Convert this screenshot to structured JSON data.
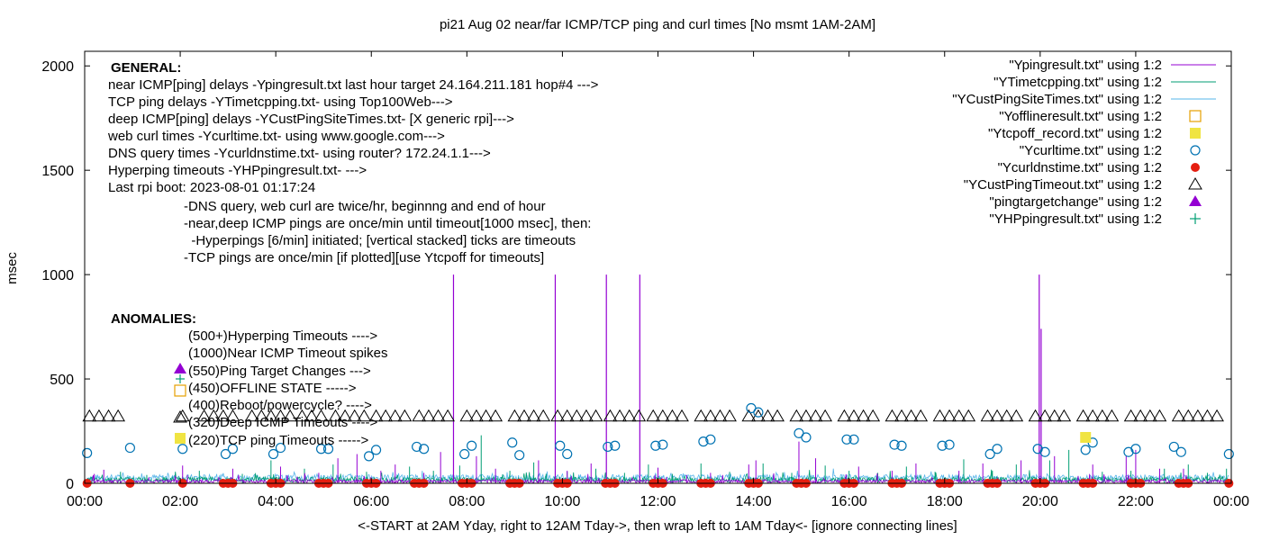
{
  "chart_data": {
    "type": "line",
    "title": "pi21 Aug 02  near/far ICMP/TCP ping and curl times [No msmt 1AM-2AM]",
    "xlabel": "<-START at 2AM Yday, right to 12AM Tday->, then wrap left to 1AM Tday<- [ignore connecting lines]",
    "ylabel": "msec",
    "xlim": [
      0,
      24
    ],
    "ylim": [
      0,
      2070
    ],
    "x_ticks": [
      "00:00",
      "02:00",
      "04:00",
      "06:00",
      "08:00",
      "10:00",
      "12:00",
      "14:00",
      "16:00",
      "18:00",
      "20:00",
      "22:00",
      "00:00"
    ],
    "y_ticks": [
      "0",
      "500",
      "1000",
      "1500",
      "2000"
    ],
    "legend_position": "top-right",
    "legend": [
      {
        "label": "\"Ypingresult.txt\" using 1:2",
        "kind": "line",
        "color": "#9400d3"
      },
      {
        "label": "\"YTimetcpping.txt\" using 1:2",
        "kind": "line",
        "color": "#009e73"
      },
      {
        "label": "\"YCustPingSiteTimes.txt\" using 1:2",
        "kind": "line",
        "color": "#56b4e9"
      },
      {
        "label": "\"Yofflineresult.txt\" using 1:2",
        "kind": "open-square",
        "color": "#e69f00"
      },
      {
        "label": "\"Ytcpoff_record.txt\" using 1:2",
        "kind": "filled-square",
        "color": "#f0e442"
      },
      {
        "label": "\"Ycurltime.txt\" using 1:2",
        "kind": "open-circle",
        "color": "#0072b2"
      },
      {
        "label": "\"Ycurldnstime.txt\" using 1:2",
        "kind": "filled-circle",
        "color": "#e51e10"
      },
      {
        "label": "\"YCustPingTimeout.txt\" using 1:2",
        "kind": "open-triangle",
        "color": "#000000"
      },
      {
        "label": "\"pingtargetchange\" using 1:2",
        "kind": "filled-triangle",
        "color": "#9400d3"
      },
      {
        "label": "\"YHPpingresult.txt\" using 1:2",
        "kind": "plus",
        "color": "#009e73"
      }
    ],
    "general_heading": "GENERAL:",
    "general_lines": [
      "near ICMP[ping] delays -Ypingresult.txt last hour target 24.164.211.181 hop#4 --->",
      "TCP ping delays -YTimetcpping.txt- using Top100Web--->",
      "deep ICMP[ping] delays -YCustPingSiteTimes.txt- [X generic rpi]--->",
      "web curl times -Ycurltime.txt- using www.google.com--->",
      "DNS query times -Ycurldnstime.txt- using router? 172.24.1.1--->",
      "Hyperping timeouts -YHPpingresult.txt- --->",
      "Last rpi boot: 2023-08-01 01:17:24"
    ],
    "general_notes": [
      "-DNS query, web curl are twice/hr, beginnng and end of hour",
      "-near,deep ICMP pings are once/min until timeout[1000 msec], then:",
      "  -Hyperpings [6/min] initiated; [vertical stacked] ticks are timeouts",
      "-TCP pings are once/min [if plotted][use Ytcpoff for timeouts]"
    ],
    "anomalies_heading": "ANOMALIES:",
    "anomalies_lines": [
      "(500+)Hyperping Timeouts ---->",
      "(1000)Near ICMP Timeout spikes",
      "(550)Ping Target Changes --->",
      "(450)OFFLINE STATE ----->",
      "(400)Reboot/powercycle? ---->",
      "(320)Deep ICMP Timeouts ---->",
      "(220)TCP ping Timeouts ----->"
    ],
    "series": {
      "ping_spikes": [
        {
          "x": 7.72,
          "y": 1000
        },
        {
          "x": 9.85,
          "y": 1000
        },
        {
          "x": 10.92,
          "y": 1000
        },
        {
          "x": 11.62,
          "y": 1000
        },
        {
          "x": 19.98,
          "y": 1000
        },
        {
          "x": 20.02,
          "y": 740
        }
      ],
      "ping_small_peaks": [
        {
          "x": 0.2,
          "y": 45
        },
        {
          "x": 0.4,
          "y": 65
        },
        {
          "x": 2.05,
          "y": 85
        },
        {
          "x": 2.15,
          "y": 40
        },
        {
          "x": 3.1,
          "y": 70
        },
        {
          "x": 4.1,
          "y": 80
        },
        {
          "x": 4.9,
          "y": 50
        },
        {
          "x": 5.3,
          "y": 120
        },
        {
          "x": 5.7,
          "y": 140
        },
        {
          "x": 6.2,
          "y": 60
        },
        {
          "x": 6.5,
          "y": 90
        },
        {
          "x": 7.1,
          "y": 50
        },
        {
          "x": 7.45,
          "y": 150
        },
        {
          "x": 8.2,
          "y": 130
        },
        {
          "x": 8.6,
          "y": 70
        },
        {
          "x": 9.5,
          "y": 110
        },
        {
          "x": 10.1,
          "y": 60
        },
        {
          "x": 10.6,
          "y": 95
        },
        {
          "x": 12.0,
          "y": 75
        },
        {
          "x": 12.6,
          "y": 40
        },
        {
          "x": 13.1,
          "y": 50
        },
        {
          "x": 13.9,
          "y": 90
        },
        {
          "x": 14.05,
          "y": 110
        },
        {
          "x": 14.95,
          "y": 200
        },
        {
          "x": 15.3,
          "y": 120
        },
        {
          "x": 16.2,
          "y": 80
        },
        {
          "x": 16.9,
          "y": 60
        },
        {
          "x": 17.4,
          "y": 95
        },
        {
          "x": 18.3,
          "y": 60
        },
        {
          "x": 18.8,
          "y": 95
        },
        {
          "x": 19.6,
          "y": 110
        },
        {
          "x": 20.3,
          "y": 130
        },
        {
          "x": 21.1,
          "y": 90
        },
        {
          "x": 21.8,
          "y": 130
        },
        {
          "x": 22.0,
          "y": 160
        },
        {
          "x": 22.5,
          "y": 70
        },
        {
          "x": 23.0,
          "y": 70
        }
      ],
      "tcp_peaks": [
        {
          "x": 0.15,
          "y": 30
        },
        {
          "x": 0.75,
          "y": 55
        },
        {
          "x": 1.3,
          "y": 40
        },
        {
          "x": 2.4,
          "y": 60
        },
        {
          "x": 3.3,
          "y": 45
        },
        {
          "x": 3.9,
          "y": 110
        },
        {
          "x": 4.6,
          "y": 70
        },
        {
          "x": 5.2,
          "y": 90
        },
        {
          "x": 5.9,
          "y": 55
        },
        {
          "x": 6.8,
          "y": 80
        },
        {
          "x": 7.3,
          "y": 60
        },
        {
          "x": 7.85,
          "y": 85
        },
        {
          "x": 8.3,
          "y": 230
        },
        {
          "x": 8.9,
          "y": 60
        },
        {
          "x": 9.4,
          "y": 100
        },
        {
          "x": 10.1,
          "y": 55
        },
        {
          "x": 10.7,
          "y": 70
        },
        {
          "x": 11.3,
          "y": 50
        },
        {
          "x": 11.8,
          "y": 90
        },
        {
          "x": 12.3,
          "y": 45
        },
        {
          "x": 12.9,
          "y": 95
        },
        {
          "x": 13.5,
          "y": 55
        },
        {
          "x": 14.2,
          "y": 95
        },
        {
          "x": 14.8,
          "y": 50
        },
        {
          "x": 15.5,
          "y": 85
        },
        {
          "x": 16.0,
          "y": 60
        },
        {
          "x": 16.6,
          "y": 50
        },
        {
          "x": 17.2,
          "y": 80
        },
        {
          "x": 17.8,
          "y": 55
        },
        {
          "x": 18.4,
          "y": 115
        },
        {
          "x": 19.0,
          "y": 60
        },
        {
          "x": 19.5,
          "y": 90
        },
        {
          "x": 20.2,
          "y": 110
        },
        {
          "x": 20.6,
          "y": 160
        },
        {
          "x": 21.3,
          "y": 55
        },
        {
          "x": 21.9,
          "y": 60
        },
        {
          "x": 22.6,
          "y": 70
        },
        {
          "x": 23.1,
          "y": 90
        },
        {
          "x": 23.5,
          "y": 50
        },
        {
          "x": 23.9,
          "y": 70
        }
      ],
      "curl_time": [
        {
          "x": 0.05,
          "y": 145
        },
        {
          "x": 0.95,
          "y": 170
        },
        {
          "x": 2.05,
          "y": 165
        },
        {
          "x": 2.95,
          "y": 140
        },
        {
          "x": 3.1,
          "y": 165
        },
        {
          "x": 3.95,
          "y": 140
        },
        {
          "x": 4.1,
          "y": 170
        },
        {
          "x": 4.95,
          "y": 165
        },
        {
          "x": 5.1,
          "y": 165
        },
        {
          "x": 5.95,
          "y": 130
        },
        {
          "x": 6.1,
          "y": 160
        },
        {
          "x": 6.95,
          "y": 175
        },
        {
          "x": 7.1,
          "y": 165
        },
        {
          "x": 7.95,
          "y": 140
        },
        {
          "x": 8.1,
          "y": 180
        },
        {
          "x": 8.95,
          "y": 195
        },
        {
          "x": 9.1,
          "y": 135
        },
        {
          "x": 9.95,
          "y": 180
        },
        {
          "x": 10.1,
          "y": 140
        },
        {
          "x": 10.95,
          "y": 175
        },
        {
          "x": 11.1,
          "y": 180
        },
        {
          "x": 11.95,
          "y": 180
        },
        {
          "x": 12.1,
          "y": 185
        },
        {
          "x": 12.95,
          "y": 200
        },
        {
          "x": 13.1,
          "y": 210
        },
        {
          "x": 13.95,
          "y": 360
        },
        {
          "x": 14.1,
          "y": 340
        },
        {
          "x": 14.95,
          "y": 240
        },
        {
          "x": 15.1,
          "y": 220
        },
        {
          "x": 15.95,
          "y": 210
        },
        {
          "x": 16.1,
          "y": 210
        },
        {
          "x": 16.95,
          "y": 185
        },
        {
          "x": 17.1,
          "y": 180
        },
        {
          "x": 17.95,
          "y": 180
        },
        {
          "x": 18.1,
          "y": 185
        },
        {
          "x": 18.95,
          "y": 140
        },
        {
          "x": 19.1,
          "y": 165
        },
        {
          "x": 19.95,
          "y": 165
        },
        {
          "x": 20.1,
          "y": 150
        },
        {
          "x": 20.95,
          "y": 160
        },
        {
          "x": 21.1,
          "y": 195
        },
        {
          "x": 21.85,
          "y": 150
        },
        {
          "x": 22.0,
          "y": 165
        },
        {
          "x": 22.8,
          "y": 175
        },
        {
          "x": 22.95,
          "y": 150
        },
        {
          "x": 23.95,
          "y": 140
        }
      ],
      "curl_dns_time": [
        {
          "x": 0.05,
          "y": 0
        },
        {
          "x": 0.95,
          "y": 0
        },
        {
          "x": 2.05,
          "y": 0
        },
        {
          "x": 2.9,
          "y": 0
        },
        {
          "x": 3.0,
          "y": 0
        },
        {
          "x": 3.1,
          "y": 0
        },
        {
          "x": 3.9,
          "y": 0
        },
        {
          "x": 4.0,
          "y": 0
        },
        {
          "x": 4.1,
          "y": 0
        },
        {
          "x": 4.9,
          "y": 0
        },
        {
          "x": 5.0,
          "y": 0
        },
        {
          "x": 5.1,
          "y": 0
        },
        {
          "x": 5.9,
          "y": 0
        },
        {
          "x": 6.0,
          "y": 0
        },
        {
          "x": 6.1,
          "y": 0
        },
        {
          "x": 6.9,
          "y": 0
        },
        {
          "x": 7.0,
          "y": 0
        },
        {
          "x": 7.1,
          "y": 0
        },
        {
          "x": 7.9,
          "y": 0
        },
        {
          "x": 8.0,
          "y": 0
        },
        {
          "x": 8.1,
          "y": 0
        },
        {
          "x": 8.9,
          "y": 0
        },
        {
          "x": 9.0,
          "y": 0
        },
        {
          "x": 9.1,
          "y": 0
        },
        {
          "x": 9.9,
          "y": 0
        },
        {
          "x": 10.0,
          "y": 0
        },
        {
          "x": 10.1,
          "y": 0
        },
        {
          "x": 10.9,
          "y": 0
        },
        {
          "x": 11.0,
          "y": 0
        },
        {
          "x": 11.1,
          "y": 0
        },
        {
          "x": 11.9,
          "y": 0
        },
        {
          "x": 12.0,
          "y": 0
        },
        {
          "x": 12.1,
          "y": 0
        },
        {
          "x": 12.9,
          "y": 0
        },
        {
          "x": 13.0,
          "y": 0
        },
        {
          "x": 13.1,
          "y": 0
        },
        {
          "x": 13.9,
          "y": 0
        },
        {
          "x": 14.0,
          "y": 0
        },
        {
          "x": 14.1,
          "y": 0
        },
        {
          "x": 14.9,
          "y": 0
        },
        {
          "x": 15.0,
          "y": 0
        },
        {
          "x": 15.1,
          "y": 0
        },
        {
          "x": 15.9,
          "y": 0
        },
        {
          "x": 16.0,
          "y": 0
        },
        {
          "x": 16.1,
          "y": 0
        },
        {
          "x": 16.9,
          "y": 0
        },
        {
          "x": 17.0,
          "y": 0
        },
        {
          "x": 17.1,
          "y": 0
        },
        {
          "x": 17.9,
          "y": 0
        },
        {
          "x": 18.0,
          "y": 0
        },
        {
          "x": 18.1,
          "y": 0
        },
        {
          "x": 18.9,
          "y": 0
        },
        {
          "x": 19.0,
          "y": 0
        },
        {
          "x": 19.1,
          "y": 0
        },
        {
          "x": 19.9,
          "y": 0
        },
        {
          "x": 20.0,
          "y": 0
        },
        {
          "x": 20.1,
          "y": 0
        },
        {
          "x": 20.9,
          "y": 0
        },
        {
          "x": 21.0,
          "y": 0
        },
        {
          "x": 21.1,
          "y": 0
        },
        {
          "x": 21.9,
          "y": 0
        },
        {
          "x": 22.0,
          "y": 0
        },
        {
          "x": 22.1,
          "y": 0
        },
        {
          "x": 22.9,
          "y": 0
        },
        {
          "x": 23.0,
          "y": 0
        },
        {
          "x": 23.1,
          "y": 0
        },
        {
          "x": 23.95,
          "y": 0
        }
      ],
      "deep_icmp_timeouts": [
        0.1,
        0.3,
        0.5,
        0.7,
        2.05,
        2.5,
        2.7,
        2.9,
        3.1,
        3.5,
        3.7,
        3.9,
        4.1,
        4.3,
        4.55,
        4.75,
        4.95,
        5.25,
        5.45,
        5.65,
        5.85,
        6.1,
        6.3,
        6.5,
        6.7,
        7.0,
        7.2,
        7.4,
        7.6,
        8.0,
        8.2,
        8.4,
        8.6,
        9.0,
        9.2,
        9.4,
        9.6,
        9.9,
        10.1,
        10.3,
        10.5,
        10.7,
        11.0,
        11.2,
        11.4,
        11.6,
        11.9,
        12.1,
        12.3,
        12.5,
        12.9,
        13.1,
        13.3,
        13.5,
        13.9,
        14.1,
        14.3,
        14.5,
        14.9,
        15.1,
        15.3,
        15.5,
        15.9,
        16.1,
        16.3,
        16.5,
        16.9,
        17.1,
        17.3,
        17.5,
        17.9,
        18.1,
        18.3,
        18.5,
        18.9,
        19.1,
        19.3,
        19.5,
        19.9,
        20.1,
        20.3,
        20.5,
        20.9,
        21.1,
        21.3,
        21.5,
        21.9,
        22.1,
        22.3,
        22.5,
        22.9,
        23.1,
        23.3,
        23.5,
        23.7
      ],
      "deep_icmp_timeout_y": 320,
      "tcp_off_record": [
        {
          "x": 20.95,
          "y": 220
        }
      ]
    }
  }
}
